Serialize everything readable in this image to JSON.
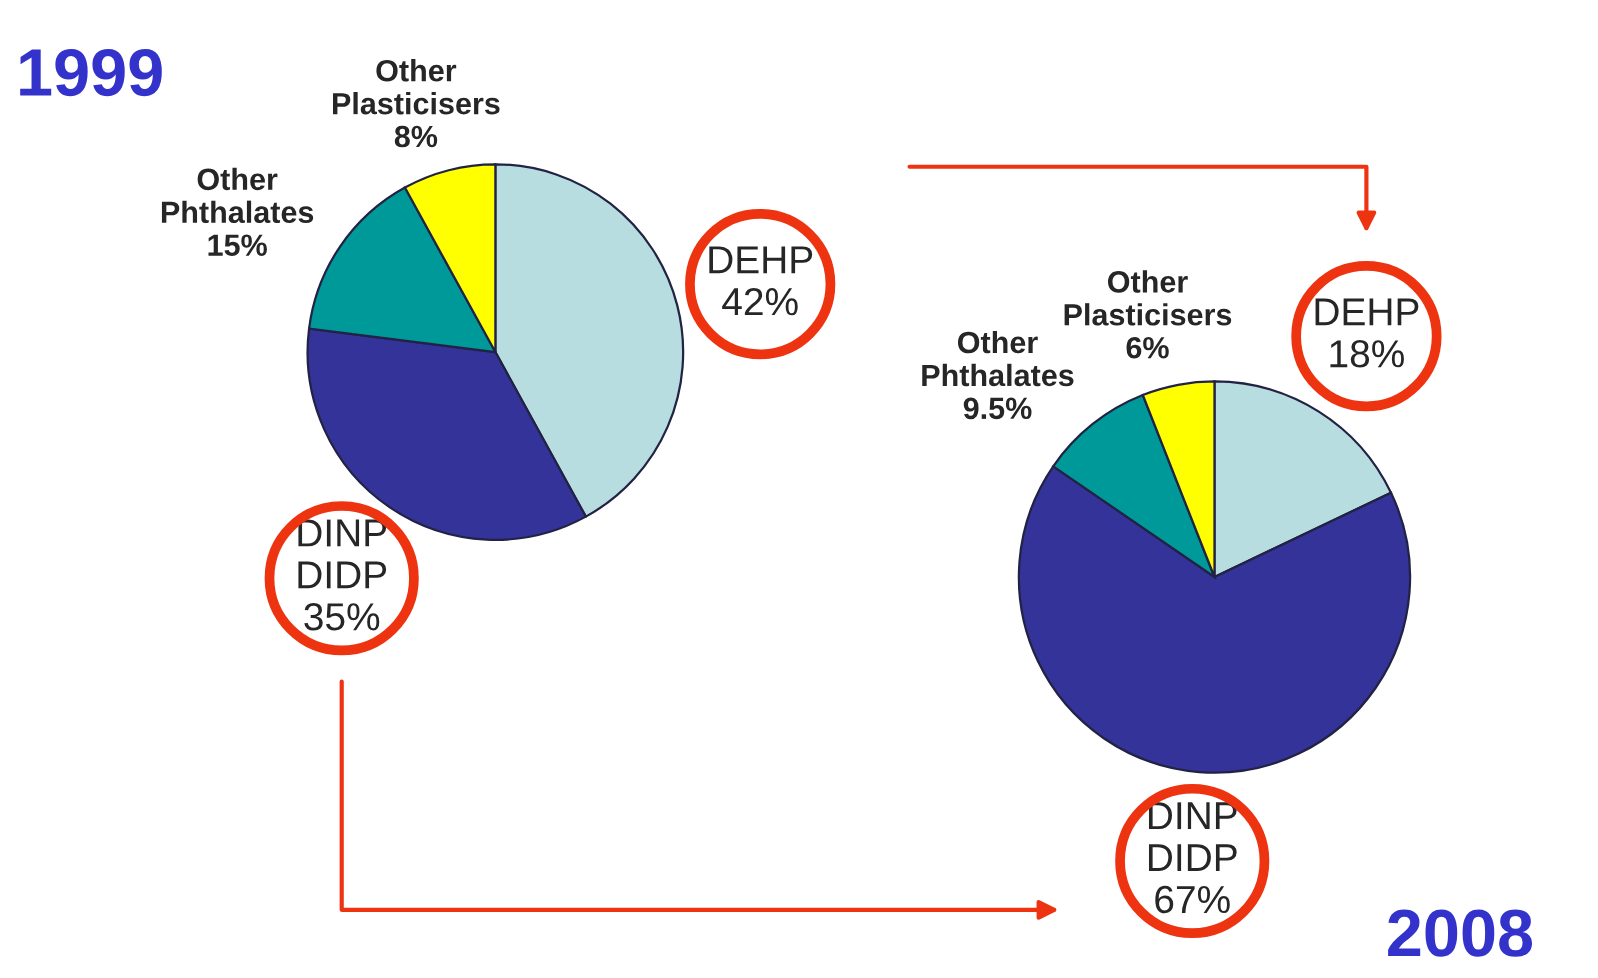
{
  "chart_data": [
    {
      "type": "pie",
      "title": "1999",
      "categories": [
        "DEHP\n42%",
        "DINP\nDIDP\n35%",
        "Other\nPhthalates\n15%",
        "Other\nPlasticisers\n8%"
      ],
      "values": [
        42,
        35,
        15,
        8
      ],
      "colors": [
        "#b8dde0",
        "#333399",
        "#009999",
        "#ffff00"
      ]
    },
    {
      "type": "pie",
      "title": "2008",
      "categories": [
        "DEHP\n18%",
        "DINP\nDIDP\n67%",
        "Other\nPhthalates\n9.5%",
        "Other\nPlasticisers\n6%"
      ],
      "values": [
        18,
        67,
        9.5,
        6
      ],
      "colors": [
        "#b8dde0",
        "#333399",
        "#009999",
        "#ffff00"
      ]
    }
  ]
}
